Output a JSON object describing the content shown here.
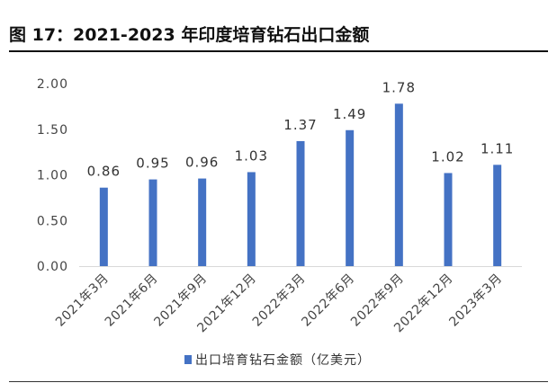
{
  "figure": {
    "title": "图 17：2021-2023 年印度培育钻石出口金额"
  },
  "chart_data": {
    "type": "bar",
    "title": "",
    "xlabel": "",
    "ylabel": "",
    "categories": [
      "2021年3月",
      "2021年6月",
      "2021年9月",
      "2021年12月",
      "2022年3月",
      "2022年6月",
      "2022年9月",
      "2022年12月",
      "2023年3月"
    ],
    "series": [
      {
        "name": "出口培育钻石金额（亿美元）",
        "values": [
          0.86,
          0.95,
          0.96,
          1.03,
          1.37,
          1.49,
          1.78,
          1.02,
          1.11
        ],
        "color": "#4472c4"
      }
    ],
    "ylim": [
      0,
      2.0
    ],
    "yticks": [
      "0.00",
      "0.50",
      "1.00",
      "1.50",
      "2.00"
    ],
    "data_labels": [
      "0.86",
      "0.95",
      "0.96",
      "1.03",
      "1.37",
      "1.49",
      "1.78",
      "1.02",
      "1.11"
    ],
    "grid": false,
    "legend": "bottom-center"
  }
}
